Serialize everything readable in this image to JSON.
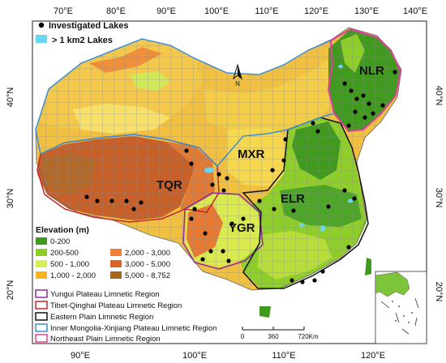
{
  "top_legend": {
    "investigated": "Investigated Lakes",
    "large_lakes": "> 1 km2 Lakes",
    "lake_color": "#6ad7f0",
    "dot_color": "#000000"
  },
  "axes": {
    "top_ticks": [
      "70°E",
      "80°E",
      "90°E",
      "100°E",
      "110°E",
      "120°E",
      "130°E",
      "140°E"
    ],
    "bottom_ticks": [
      "90°E",
      "100°E",
      "110°E",
      "120°E"
    ],
    "left_ticks": [
      "40°N",
      "30°N",
      "20°N"
    ],
    "right_ticks": [
      "40°N",
      "30°N",
      "20°N"
    ]
  },
  "north_arrow": "N",
  "regions": {
    "NLR": {
      "label": "NLR",
      "color": "#e0409a"
    },
    "MXR": {
      "label": "MXR",
      "color": "#3f8fd1"
    },
    "TQR": {
      "label": "TQR",
      "color": "#c0282c"
    },
    "YGR": {
      "label": "YGR",
      "color": "#8a2c9c"
    },
    "ELR": {
      "label": "ELR",
      "color": "#111111"
    }
  },
  "elevation_legend": {
    "title": "Elevation (m)",
    "classes": [
      {
        "label": "0-200",
        "color": "#3f9a1e"
      },
      {
        "label": "200-500",
        "color": "#8fce2a"
      },
      {
        "label": "500 - 1,000",
        "color": "#d6ee55"
      },
      {
        "label": "1,000 - 2,000",
        "color": "#f7b51e"
      },
      {
        "label": "2,000 - 3,000",
        "color": "#ef7f3a"
      },
      {
        "label": "3,000 - 5,000",
        "color": "#d9642a"
      },
      {
        "label": "5,000 - 8,752",
        "color": "#a8651d"
      }
    ]
  },
  "region_legend": [
    {
      "label": "Yungui Plateau Limnetic Region",
      "color": "#8a2c9c"
    },
    {
      "label": "Tibet-Qinghai Plateau Limnetic Region",
      "color": "#c0282c"
    },
    {
      "label": "Eastern Plain Limnetic Region",
      "color": "#111111"
    },
    {
      "label": "Inner Mongolia-Xinjiang Plateau Limnetic Region",
      "color": "#3f8fd1"
    },
    {
      "label": "Northeast Plain Limnetic Region",
      "color": "#e0409a"
    }
  ],
  "scale_bar": {
    "ticks": [
      "0",
      "360",
      "720Km"
    ]
  }
}
